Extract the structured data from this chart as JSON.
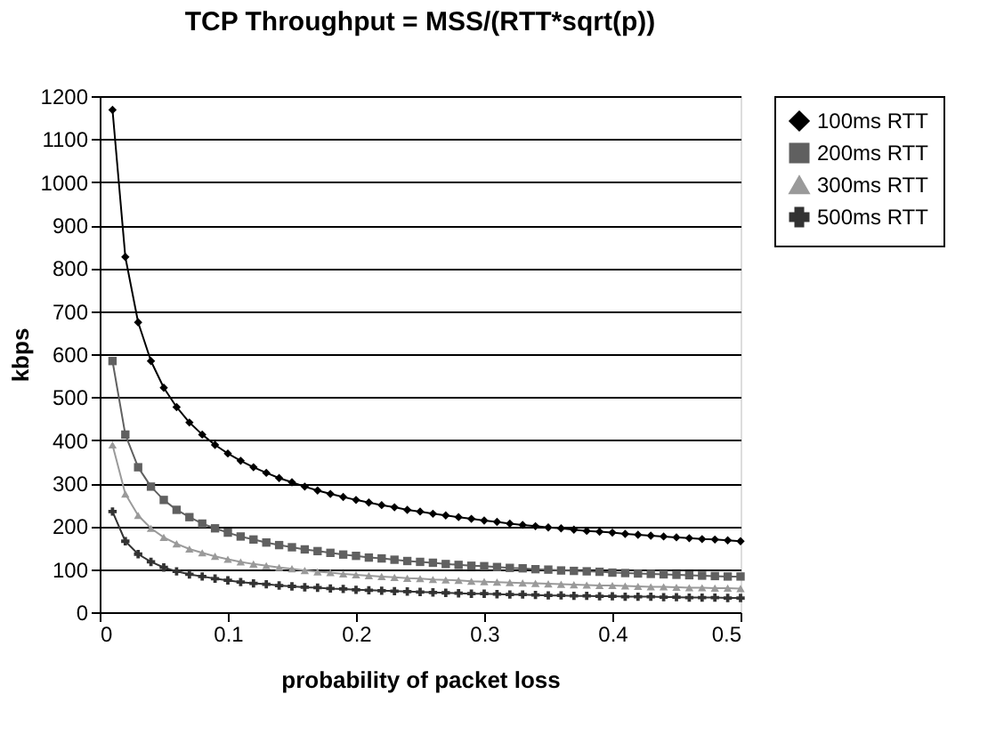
{
  "chart_data": {
    "type": "line",
    "title": "TCP Throughput = MSS/(RTT*sqrt(p))",
    "xlabel": "probability of packet loss",
    "ylabel": "kbps",
    "x": [
      0.01,
      0.02,
      0.03,
      0.04,
      0.05,
      0.06,
      0.07,
      0.08,
      0.09,
      0.1,
      0.11,
      0.12,
      0.13,
      0.14,
      0.15,
      0.16,
      0.17,
      0.18,
      0.19,
      0.2,
      0.21,
      0.22,
      0.23,
      0.24,
      0.25,
      0.26,
      0.27,
      0.28,
      0.29,
      0.3,
      0.31,
      0.32,
      0.33,
      0.34,
      0.35,
      0.36,
      0.37,
      0.38,
      0.39,
      0.4,
      0.41,
      0.42,
      0.43,
      0.44,
      0.45,
      0.46,
      0.47,
      0.48,
      0.49,
      0.5
    ],
    "series": [
      {
        "name": "100ms RTT",
        "color": "#000000",
        "marker": "diamond",
        "values": [
          1168,
          826,
          674,
          584,
          522,
          477,
          441,
          413,
          389,
          369,
          352,
          337,
          324,
          312,
          302,
          292,
          283,
          275,
          268,
          261,
          255,
          249,
          244,
          238,
          234,
          229,
          225,
          221,
          217,
          213,
          210,
          206,
          203,
          200,
          197,
          195,
          192,
          189,
          187,
          185,
          182,
          180,
          178,
          176,
          174,
          172,
          170,
          169,
          167,
          165
        ]
      },
      {
        "name": "200ms RTT",
        "color": "#606060",
        "marker": "square",
        "values": [
          584,
          413,
          337,
          292,
          261,
          238,
          221,
          206,
          195,
          185,
          176,
          169,
          162,
          156,
          151,
          146,
          142,
          138,
          134,
          131,
          127,
          125,
          122,
          119,
          117,
          115,
          112,
          110,
          108,
          107,
          105,
          103,
          102,
          100,
          99,
          97,
          96,
          95,
          94,
          92,
          91,
          90,
          89,
          88,
          87,
          86,
          85,
          84,
          83,
          83
        ]
      },
      {
        "name": "300ms RTT",
        "color": "#9a9a9a",
        "marker": "triangle",
        "values": [
          389,
          275,
          225,
          195,
          174,
          159,
          147,
          138,
          130,
          123,
          117,
          112,
          108,
          104,
          101,
          97,
          94,
          92,
          89,
          87,
          85,
          83,
          81,
          79,
          78,
          76,
          75,
          74,
          72,
          71,
          70,
          69,
          68,
          67,
          66,
          65,
          64,
          63,
          62,
          62,
          61,
          60,
          59,
          59,
          58,
          57,
          57,
          56,
          56,
          55
        ]
      },
      {
        "name": "500ms RTT",
        "color": "#333333",
        "marker": "cross",
        "values": [
          234,
          165,
          135,
          117,
          104,
          95,
          88,
          83,
          78,
          74,
          70,
          67,
          65,
          62,
          60,
          58,
          57,
          55,
          54,
          52,
          51,
          50,
          49,
          48,
          47,
          46,
          45,
          44,
          43,
          43,
          42,
          41,
          41,
          40,
          39,
          39,
          38,
          38,
          37,
          37,
          36,
          36,
          36,
          35,
          35,
          34,
          34,
          34,
          33,
          33
        ]
      }
    ],
    "xlim": [
      0,
      0.5
    ],
    "xticks": [
      0,
      0.1,
      0.2,
      0.3,
      0.4,
      0.5
    ],
    "ylim": [
      0,
      1200
    ],
    "yticks": [
      0,
      100,
      200,
      300,
      400,
      500,
      600,
      700,
      800,
      900,
      1000,
      1100,
      1200
    ],
    "grid": "y",
    "legend": "right",
    "line_style": "solid"
  }
}
